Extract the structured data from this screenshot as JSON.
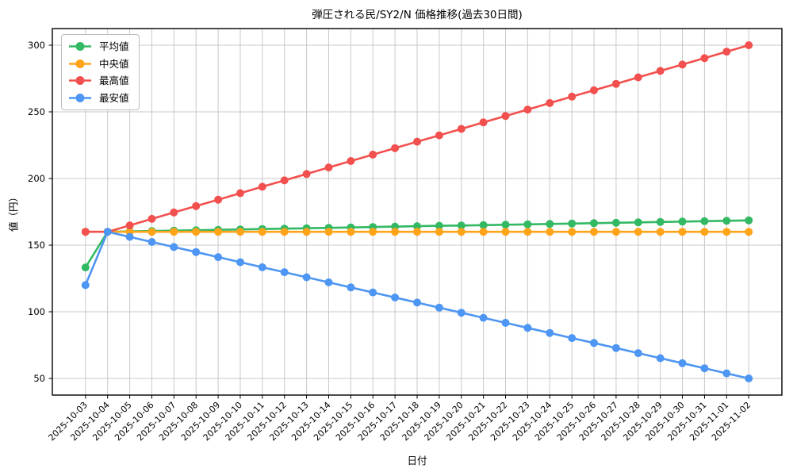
{
  "figure": {
    "title": "弾圧される民/SY2/N 価格推移(過去30日間)",
    "xlabel": "日付",
    "ylabel": "値（円）"
  },
  "chart_data": {
    "type": "line",
    "title": "弾圧される民/SY2/N 価格推移(過去30日間)",
    "xlabel": "日付",
    "ylabel": "値（円）",
    "x": [
      "2025-10-03",
      "2025-10-04",
      "2025-10-05",
      "2025-10-06",
      "2025-10-07",
      "2025-10-08",
      "2025-10-09",
      "2025-10-10",
      "2025-10-11",
      "2025-10-12",
      "2025-10-13",
      "2025-10-14",
      "2025-10-15",
      "2025-10-16",
      "2025-10-17",
      "2025-10-18",
      "2025-10-19",
      "2025-10-20",
      "2025-10-21",
      "2025-10-22",
      "2025-10-23",
      "2025-10-24",
      "2025-10-25",
      "2025-10-26",
      "2025-10-27",
      "2025-10-28",
      "2025-10-29",
      "2025-10-30",
      "2025-10-31",
      "2025-11-01",
      "2025-11-02"
    ],
    "series": [
      {
        "id": "avg",
        "name": "平均値",
        "color": "#33b964",
        "values": [
          133.3,
          160.0,
          160.3,
          160.6,
          160.9,
          161.2,
          161.5,
          161.8,
          162.1,
          162.4,
          162.7,
          163.0,
          163.3,
          163.6,
          163.9,
          164.2,
          164.5,
          164.7,
          165.0,
          165.3,
          165.6,
          165.9,
          166.2,
          166.5,
          166.8,
          167.1,
          167.4,
          167.7,
          168.0,
          168.3,
          168.6
        ]
      },
      {
        "id": "median",
        "name": "中央値",
        "color": "#ffa418",
        "values": [
          160,
          160,
          160,
          160,
          160,
          160,
          160,
          160,
          160,
          160,
          160,
          160,
          160,
          160,
          160,
          160,
          160,
          160,
          160,
          160,
          160,
          160,
          160,
          160,
          160,
          160,
          160,
          160,
          160,
          160,
          160
        ]
      },
      {
        "id": "max",
        "name": "最高値",
        "color": "#f2504e",
        "values": [
          160.0,
          160.0,
          164.8,
          169.7,
          174.5,
          179.3,
          184.1,
          189.0,
          193.8,
          198.6,
          203.4,
          208.3,
          213.1,
          217.9,
          222.8,
          227.6,
          232.4,
          237.2,
          242.1,
          246.9,
          251.7,
          256.6,
          261.4,
          266.2,
          271.0,
          275.9,
          280.7,
          285.5,
          290.3,
          295.2,
          300.0
        ]
      },
      {
        "id": "min",
        "name": "最安値",
        "color": "#4e96f3",
        "values": [
          120.0,
          160.0,
          156.2,
          152.4,
          148.6,
          144.8,
          141.0,
          137.2,
          133.4,
          129.7,
          125.9,
          122.1,
          118.3,
          114.5,
          110.7,
          106.9,
          103.1,
          99.3,
          95.5,
          91.7,
          87.9,
          84.1,
          80.3,
          76.6,
          72.8,
          69.0,
          65.2,
          61.4,
          57.6,
          53.8,
          50.0
        ]
      }
    ],
    "yticks": [
      50,
      100,
      150,
      200,
      250,
      300
    ],
    "ylim": [
      37.5,
      312.5
    ],
    "xlim": [
      -1.5,
      31.5
    ],
    "grid": true,
    "legend_position": "upper left",
    "grid_color": "#c9c9c9",
    "axis_color": "#000000",
    "tick_label_color": "#000000",
    "background": "#ffffff"
  }
}
